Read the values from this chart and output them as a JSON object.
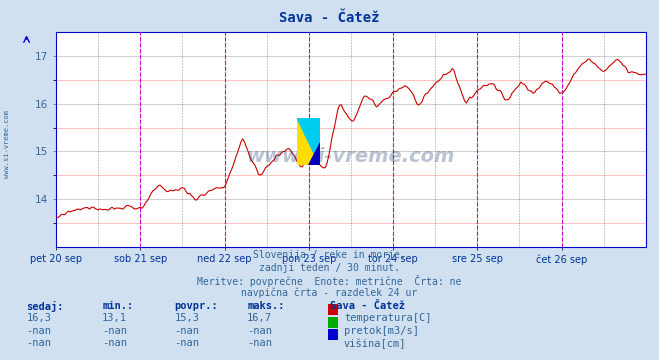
{
  "title": "Sava - Čatež",
  "title_color": "#003399",
  "bg_color": "#d0e0f0",
  "plot_bg_color": "#ffffff",
  "line_color": "#cc0000",
  "grid_major_color": "#aaaaaa",
  "grid_minor_color": "#ffaaaa",
  "axis_color": "#0000cc",
  "text_color": "#336699",
  "bold_text_color": "#003399",
  "ylabel_values": [
    14,
    15,
    16,
    17
  ],
  "ylim": [
    13.0,
    17.5
  ],
  "x_labels": [
    "pet 20 sep",
    "sob 21 sep",
    "ned 22 sep",
    "pon 23 sep",
    "tor 24 sep",
    "sre 25 sep",
    "čet 26 sep"
  ],
  "watermark_text": "www.si-vreme.com",
  "watermark_color": "#1a3a6e",
  "subtitle_lines": [
    "Slovenija / reke in morje.",
    "zadnji teden / 30 minut.",
    "Meritve: povprečne  Enote: metrične  Črta: ne",
    "navpična črta - razdelek 24 ur"
  ],
  "legend_title": "Sava - Čatež",
  "legend_items": [
    {
      "label": "temperatura[C]",
      "color": "#cc0000"
    },
    {
      "label": "pretok[m3/s]",
      "color": "#00aa00"
    },
    {
      "label": "višina[cm]",
      "color": "#0000cc"
    }
  ],
  "table_headers": [
    "sedaj:",
    "min.:",
    "povpr.:",
    "maks.:"
  ],
  "table_rows": [
    [
      "16,3",
      "13,1",
      "15,3",
      "16,7"
    ],
    [
      "-nan",
      "-nan",
      "-nan",
      "-nan"
    ],
    [
      "-nan",
      "-nan",
      "-nan",
      "-nan"
    ]
  ]
}
